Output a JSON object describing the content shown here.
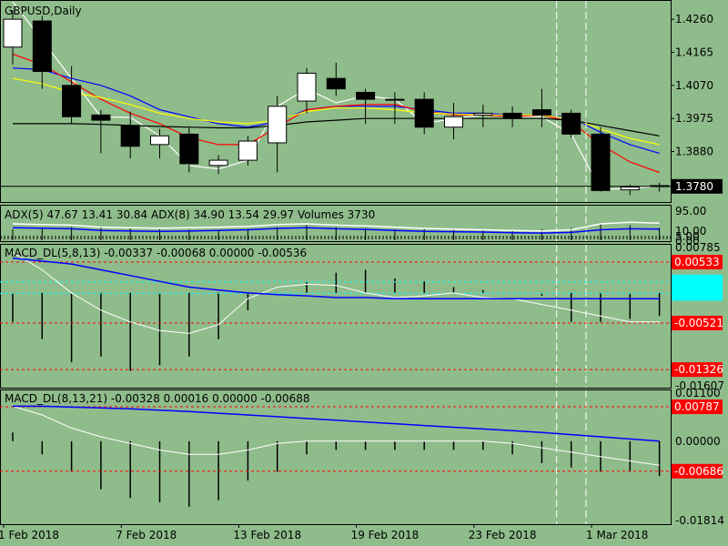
{
  "colors": {
    "background": "#8fbc8b",
    "foreground": "#000000",
    "bull_candle": "#ffffff",
    "bear_candle": "#000000",
    "ma_white": "#ffffff",
    "ma_blue": "#0000ff",
    "ma_red": "#ff0000",
    "ma_yellow": "#ffff00",
    "ma_black": "#000000",
    "level_red": "#ff0000",
    "level_cyan": "#00ffff"
  },
  "chart_data": [
    {
      "type": "candlestick",
      "title": "GBPUSD,Daily",
      "y_range": [
        1.3735,
        1.431
      ],
      "y_ticks": [
        "1.4260",
        "1.4165",
        "1.4070",
        "1.3975",
        "1.3880"
      ],
      "current_price_label": "1.3780",
      "current_price": 1.378,
      "ohlc": [
        [
          1.418,
          1.4285,
          1.413,
          1.426
        ],
        [
          1.4255,
          1.427,
          1.406,
          1.411
        ],
        [
          1.407,
          1.4125,
          1.396,
          1.398
        ],
        [
          1.3985,
          1.4,
          1.3875,
          1.397
        ],
        [
          1.3955,
          1.3995,
          1.386,
          1.3895
        ],
        [
          1.39,
          1.3945,
          1.386,
          1.3925
        ],
        [
          1.393,
          1.395,
          1.382,
          1.3845
        ],
        [
          1.384,
          1.387,
          1.3815,
          1.3855
        ],
        [
          1.3855,
          1.3925,
          1.384,
          1.391
        ],
        [
          1.3905,
          1.404,
          1.382,
          1.401
        ],
        [
          1.4025,
          1.412,
          1.399,
          1.4105
        ],
        [
          1.409,
          1.4135,
          1.404,
          1.406
        ],
        [
          1.405,
          1.406,
          1.396,
          1.403
        ],
        [
          1.403,
          1.405,
          1.396,
          1.403
        ],
        [
          1.403,
          1.405,
          1.393,
          1.395
        ],
        [
          1.395,
          1.402,
          1.3915,
          1.398
        ],
        [
          1.3985,
          1.4015,
          1.395,
          1.399
        ],
        [
          1.399,
          1.401,
          1.395,
          1.3975
        ],
        [
          1.4,
          1.406,
          1.395,
          1.3985
        ],
        [
          1.399,
          1.4,
          1.392,
          1.393
        ],
        [
          1.393,
          1.395,
          1.3765,
          1.3768
        ],
        [
          1.377,
          1.3785,
          1.3755,
          1.3778
        ],
        [
          1.3782,
          1.379,
          1.3765,
          1.378
        ]
      ],
      "moving_averages": [
        {
          "color": "#ffffff",
          "values": [
            1.431,
            1.42,
            1.409,
            1.398,
            1.3978,
            1.3925,
            1.384,
            1.383,
            1.3855,
            1.401,
            1.406,
            1.402,
            1.404,
            1.403,
            1.396,
            1.3975,
            1.3985,
            1.398,
            1.398,
            1.393,
            1.377,
            1.3775,
            1.378
          ]
        },
        {
          "color": "#0000ff",
          "values": [
            1.412,
            1.4115,
            1.409,
            1.407,
            1.404,
            1.4,
            1.398,
            1.396,
            1.395,
            1.3965,
            1.4,
            1.401,
            1.401,
            1.401,
            1.4,
            1.399,
            1.399,
            1.3985,
            1.3985,
            1.3978,
            1.3935,
            1.39,
            1.3875
          ]
        },
        {
          "color": "#ff0000",
          "values": [
            1.416,
            1.413,
            1.408,
            1.403,
            1.399,
            1.396,
            1.392,
            1.39,
            1.39,
            1.395,
            1.4,
            1.401,
            1.4015,
            1.4015,
            1.3995,
            1.3985,
            1.3985,
            1.398,
            1.3985,
            1.3965,
            1.39,
            1.385,
            1.382
          ]
        },
        {
          "color": "#ffff00",
          "values": [
            1.409,
            1.4075,
            1.405,
            1.4035,
            1.4015,
            1.399,
            1.3975,
            1.3965,
            1.396,
            1.397,
            1.3995,
            1.4005,
            1.4005,
            1.4,
            1.399,
            1.3988,
            1.3985,
            1.3985,
            1.3985,
            1.3975,
            1.3945,
            1.3918,
            1.39
          ]
        },
        {
          "color": "#000000",
          "values": [
            1.396,
            1.396,
            1.396,
            1.3958,
            1.3955,
            1.3952,
            1.395,
            1.3948,
            1.3948,
            1.3955,
            1.3965,
            1.397,
            1.3975,
            1.3975,
            1.3975,
            1.3975,
            1.3975,
            1.3975,
            1.3975,
            1.397,
            1.3955,
            1.394,
            1.3925
          ]
        }
      ],
      "x_labels": [
        {
          "index": 0,
          "label": "1 Feb 2018"
        },
        {
          "index": 4,
          "label": "7 Feb 2018"
        },
        {
          "index": 8,
          "label": "13 Feb 2018"
        },
        {
          "index": 12,
          "label": "19 Feb 2018"
        },
        {
          "index": 16,
          "label": "23 Feb 2018"
        },
        {
          "index": 20,
          "label": "1 Mar 2018"
        }
      ],
      "vertical_markers": [
        19,
        20
      ]
    },
    {
      "type": "line",
      "title": "ADX(5) 47.67 13.41 30.84 ADX(8) 34.90 13.54 29.97 Volumes 3730",
      "y_range": [
        0,
        100
      ],
      "y_ticks": [
        "95.00",
        "10.00",
        "5.00",
        "0.00"
      ],
      "series": [
        {
          "color": "#ffffff",
          "values": [
            50,
            48,
            46,
            40,
            38,
            37,
            38,
            40,
            42,
            48,
            50,
            46,
            44,
            40,
            36,
            34,
            32,
            30,
            28,
            32,
            50,
            55,
            52
          ]
        },
        {
          "color": "#0000ff",
          "values": [
            38,
            37,
            35,
            30,
            28,
            27,
            28,
            30,
            32,
            36,
            38,
            35,
            33,
            30,
            27,
            26,
            25,
            23,
            22,
            24,
            32,
            35,
            34
          ]
        }
      ],
      "volume_bars": [
        40,
        45,
        48,
        50,
        45,
        40,
        38,
        36,
        42,
        48,
        55,
        48,
        44,
        40,
        42,
        38,
        36,
        34,
        40,
        45,
        60,
        55,
        45
      ]
    },
    {
      "type": "histogram+line",
      "title": "MACD_DL(5,8,13) -0.00337 -0.00068 0.00000 -0.00536",
      "y_range": [
        -0.01607,
        0.00785
      ],
      "y_ticks": [
        "0.00785",
        "-0.01607"
      ],
      "levels": [
        {
          "value": 0.00533,
          "label": "0.00533",
          "style": "red"
        },
        {
          "value": 0.0019,
          "label": "",
          "style": "cyan"
        },
        {
          "value": -8e-05,
          "label": "",
          "style": "cyan"
        },
        {
          "value": -0.00521,
          "label": "-0.00521",
          "style": "red"
        },
        {
          "value": -0.01326,
          "label": "-0.01326",
          "style": "red"
        }
      ],
      "histogram": [
        -0.005,
        -0.008,
        -0.012,
        -0.011,
        -0.0135,
        -0.0125,
        -0.011,
        -0.008,
        -0.003,
        0.0,
        0.002,
        0.0035,
        0.004,
        0.0025,
        0.002,
        0.001,
        0.0005,
        0.0,
        -0.0005,
        -0.005,
        -0.005,
        -0.0045,
        -0.004
      ],
      "signal_white": [
        0.007,
        0.004,
        0.0,
        -0.003,
        -0.005,
        -0.0065,
        -0.007,
        -0.0055,
        -0.001,
        0.001,
        0.0015,
        0.0013,
        0.0,
        -0.0008,
        -0.0005,
        0.0,
        -0.0008,
        -0.001,
        -0.002,
        -0.003,
        -0.004,
        -0.005,
        -0.005
      ],
      "signal_blue": [
        0.006,
        0.0055,
        0.005,
        0.004,
        0.003,
        0.002,
        0.001,
        0.0005,
        0.0,
        -0.0003,
        -0.0005,
        -0.0008,
        -0.0008,
        -0.001,
        -0.001,
        -0.001,
        -0.001,
        -0.001,
        -0.001,
        -0.001,
        -0.001,
        -0.001,
        -0.001
      ]
    },
    {
      "type": "histogram+line",
      "title": "MACD_DL(8,13,21) -0.00328 0.00016 0.00000 -0.00688",
      "y_range": [
        -0.01814,
        0.011
      ],
      "y_ticks": [
        "0.01100",
        "0.00000",
        "-0.01814"
      ],
      "levels": [
        {
          "value": 0.00787,
          "label": "0.00787",
          "style": "red"
        },
        {
          "value": -0.00686,
          "label": "-0.00686",
          "style": "red"
        }
      ],
      "histogram": [
        0.002,
        -0.003,
        -0.007,
        -0.011,
        -0.013,
        -0.014,
        -0.015,
        -0.0135,
        -0.009,
        -0.007,
        -0.003,
        -0.002,
        -0.002,
        -0.002,
        -0.002,
        -0.002,
        -0.002,
        -0.003,
        -0.005,
        -0.006,
        -0.007,
        -0.007,
        -0.008
      ],
      "signal_white": [
        0.008,
        0.006,
        0.003,
        0.001,
        -0.0005,
        -0.002,
        -0.003,
        -0.003,
        -0.002,
        -0.0005,
        0.0,
        0.0,
        0.0,
        0.0,
        0.0,
        0.0,
        0.0,
        -0.0005,
        -0.0015,
        -0.0025,
        -0.0035,
        -0.0045,
        -0.0055
      ],
      "signal_blue": [
        0.008,
        0.008,
        0.0078,
        0.0076,
        0.0074,
        0.0071,
        0.0068,
        0.0064,
        0.006,
        0.0056,
        0.0052,
        0.0048,
        0.0044,
        0.004,
        0.0036,
        0.0032,
        0.0028,
        0.0024,
        0.002,
        0.0015,
        0.001,
        0.0005,
        0.0
      ]
    }
  ]
}
